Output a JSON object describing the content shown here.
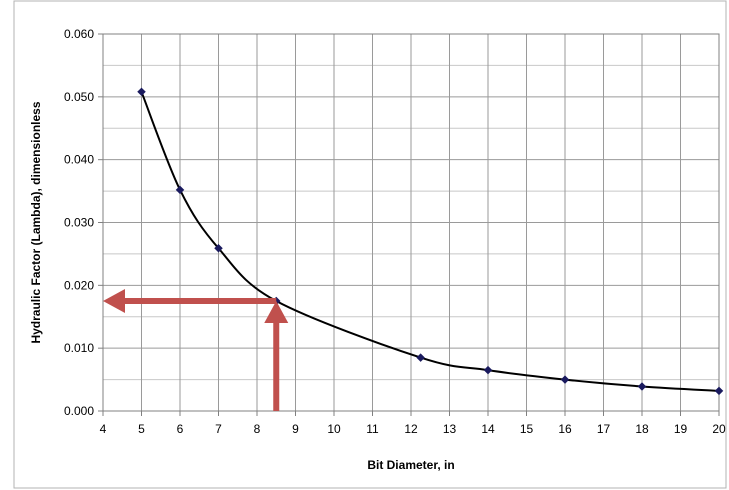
{
  "chart_data": {
    "type": "line",
    "xlabel": "Bit Diameter, in",
    "ylabel": "Hydraulic Factor (Lambda), dimensionless",
    "xlim": [
      4,
      20
    ],
    "ylim": [
      0.0,
      0.06
    ],
    "x_ticks": [
      "4",
      "5",
      "6",
      "7",
      "8",
      "9",
      "10",
      "11",
      "12",
      "13",
      "14",
      "15",
      "16",
      "17",
      "18",
      "19",
      "20"
    ],
    "y_ticks": [
      "0.000",
      "0.010",
      "0.020",
      "0.030",
      "0.040",
      "0.050",
      "0.060"
    ],
    "grid": true,
    "series": [
      {
        "x": [
          5,
          6,
          7,
          8.5,
          12.25,
          14,
          16,
          18,
          20
        ],
        "y": [
          0.0508,
          0.0352,
          0.0259,
          0.0175,
          0.0085,
          0.0065,
          0.005,
          0.0039,
          0.0032
        ],
        "color": "#000000",
        "marker_color": "#1a1a5e"
      }
    ],
    "annotations": [
      {
        "type": "arrow",
        "from": {
          "x": 8.5,
          "y": 0.0
        },
        "to": {
          "x": 8.5,
          "y": 0.0175
        },
        "color": "#c0504d"
      },
      {
        "type": "arrow",
        "from": {
          "x": 8.5,
          "y": 0.0175
        },
        "to": {
          "x": 4,
          "y": 0.0175
        },
        "color": "#c0504d"
      }
    ]
  }
}
